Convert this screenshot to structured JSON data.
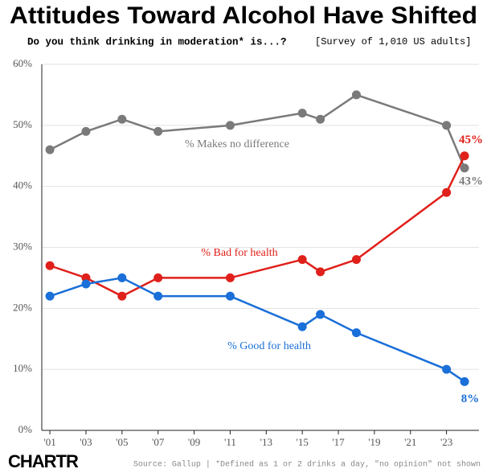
{
  "chart_data": {
    "type": "line",
    "title": "Attitudes Toward Alcohol Have Shifted",
    "subtitle": "Do you think drinking in moderation* is...?",
    "survey_note": "[Survey of 1,010 US adults]",
    "source": "Source: Gallup | *Defined as 1 or 2 drinks a day, \"no opinion\" not shown",
    "logo": "CHARTR",
    "x": [
      2001,
      2003,
      2005,
      2007,
      2011,
      2015,
      2016,
      2018,
      2023,
      2024
    ],
    "series": [
      {
        "name": "% Makes no difference",
        "color": "#7a7a7a",
        "values": [
          46,
          49,
          51,
          49,
          50,
          52,
          51,
          55,
          50,
          43
        ],
        "value_labels": [
          null,
          null,
          null,
          null,
          null,
          null,
          null,
          null,
          null,
          "43%"
        ]
      },
      {
        "name": "% Bad for health",
        "color": "#e0201b",
        "values": [
          27,
          25,
          22,
          25,
          25,
          28,
          26,
          28,
          39,
          45
        ],
        "value_labels": [
          null,
          null,
          null,
          null,
          null,
          null,
          null,
          null,
          null,
          "45%"
        ]
      },
      {
        "name": "% Good for health",
        "color": "#1a6fd8",
        "values": [
          22,
          24,
          25,
          22,
          22,
          17,
          19,
          16,
          10,
          8
        ],
        "value_labels": [
          null,
          null,
          null,
          null,
          null,
          null,
          null,
          null,
          null,
          "8%"
        ]
      }
    ],
    "xlim": [
      2000.55,
      2024.8
    ],
    "ylim": [
      0,
      60
    ],
    "xticks": [
      {
        "value": 2001,
        "label": "'01"
      },
      {
        "value": 2003,
        "label": "'03"
      },
      {
        "value": 2005,
        "label": "'05"
      },
      {
        "value": 2007,
        "label": "'07"
      },
      {
        "value": 2009,
        "label": "'09"
      },
      {
        "value": 2011,
        "label": "'11"
      },
      {
        "value": 2013,
        "label": "'13"
      },
      {
        "value": 2015,
        "label": "'15"
      },
      {
        "value": 2017,
        "label": "'17"
      },
      {
        "value": 2019,
        "label": "'19"
      },
      {
        "value": 2021,
        "label": "'21"
      },
      {
        "value": 2023,
        "label": "'23"
      }
    ],
    "yticks": [
      {
        "value": 0,
        "label": "0%"
      },
      {
        "value": 10,
        "label": "10%"
      },
      {
        "value": 20,
        "label": "20%"
      },
      {
        "value": 30,
        "label": "30%"
      },
      {
        "value": 40,
        "label": "40%"
      },
      {
        "value": 50,
        "label": "50%"
      },
      {
        "value": 60,
        "label": "60%"
      }
    ],
    "grid": true
  }
}
